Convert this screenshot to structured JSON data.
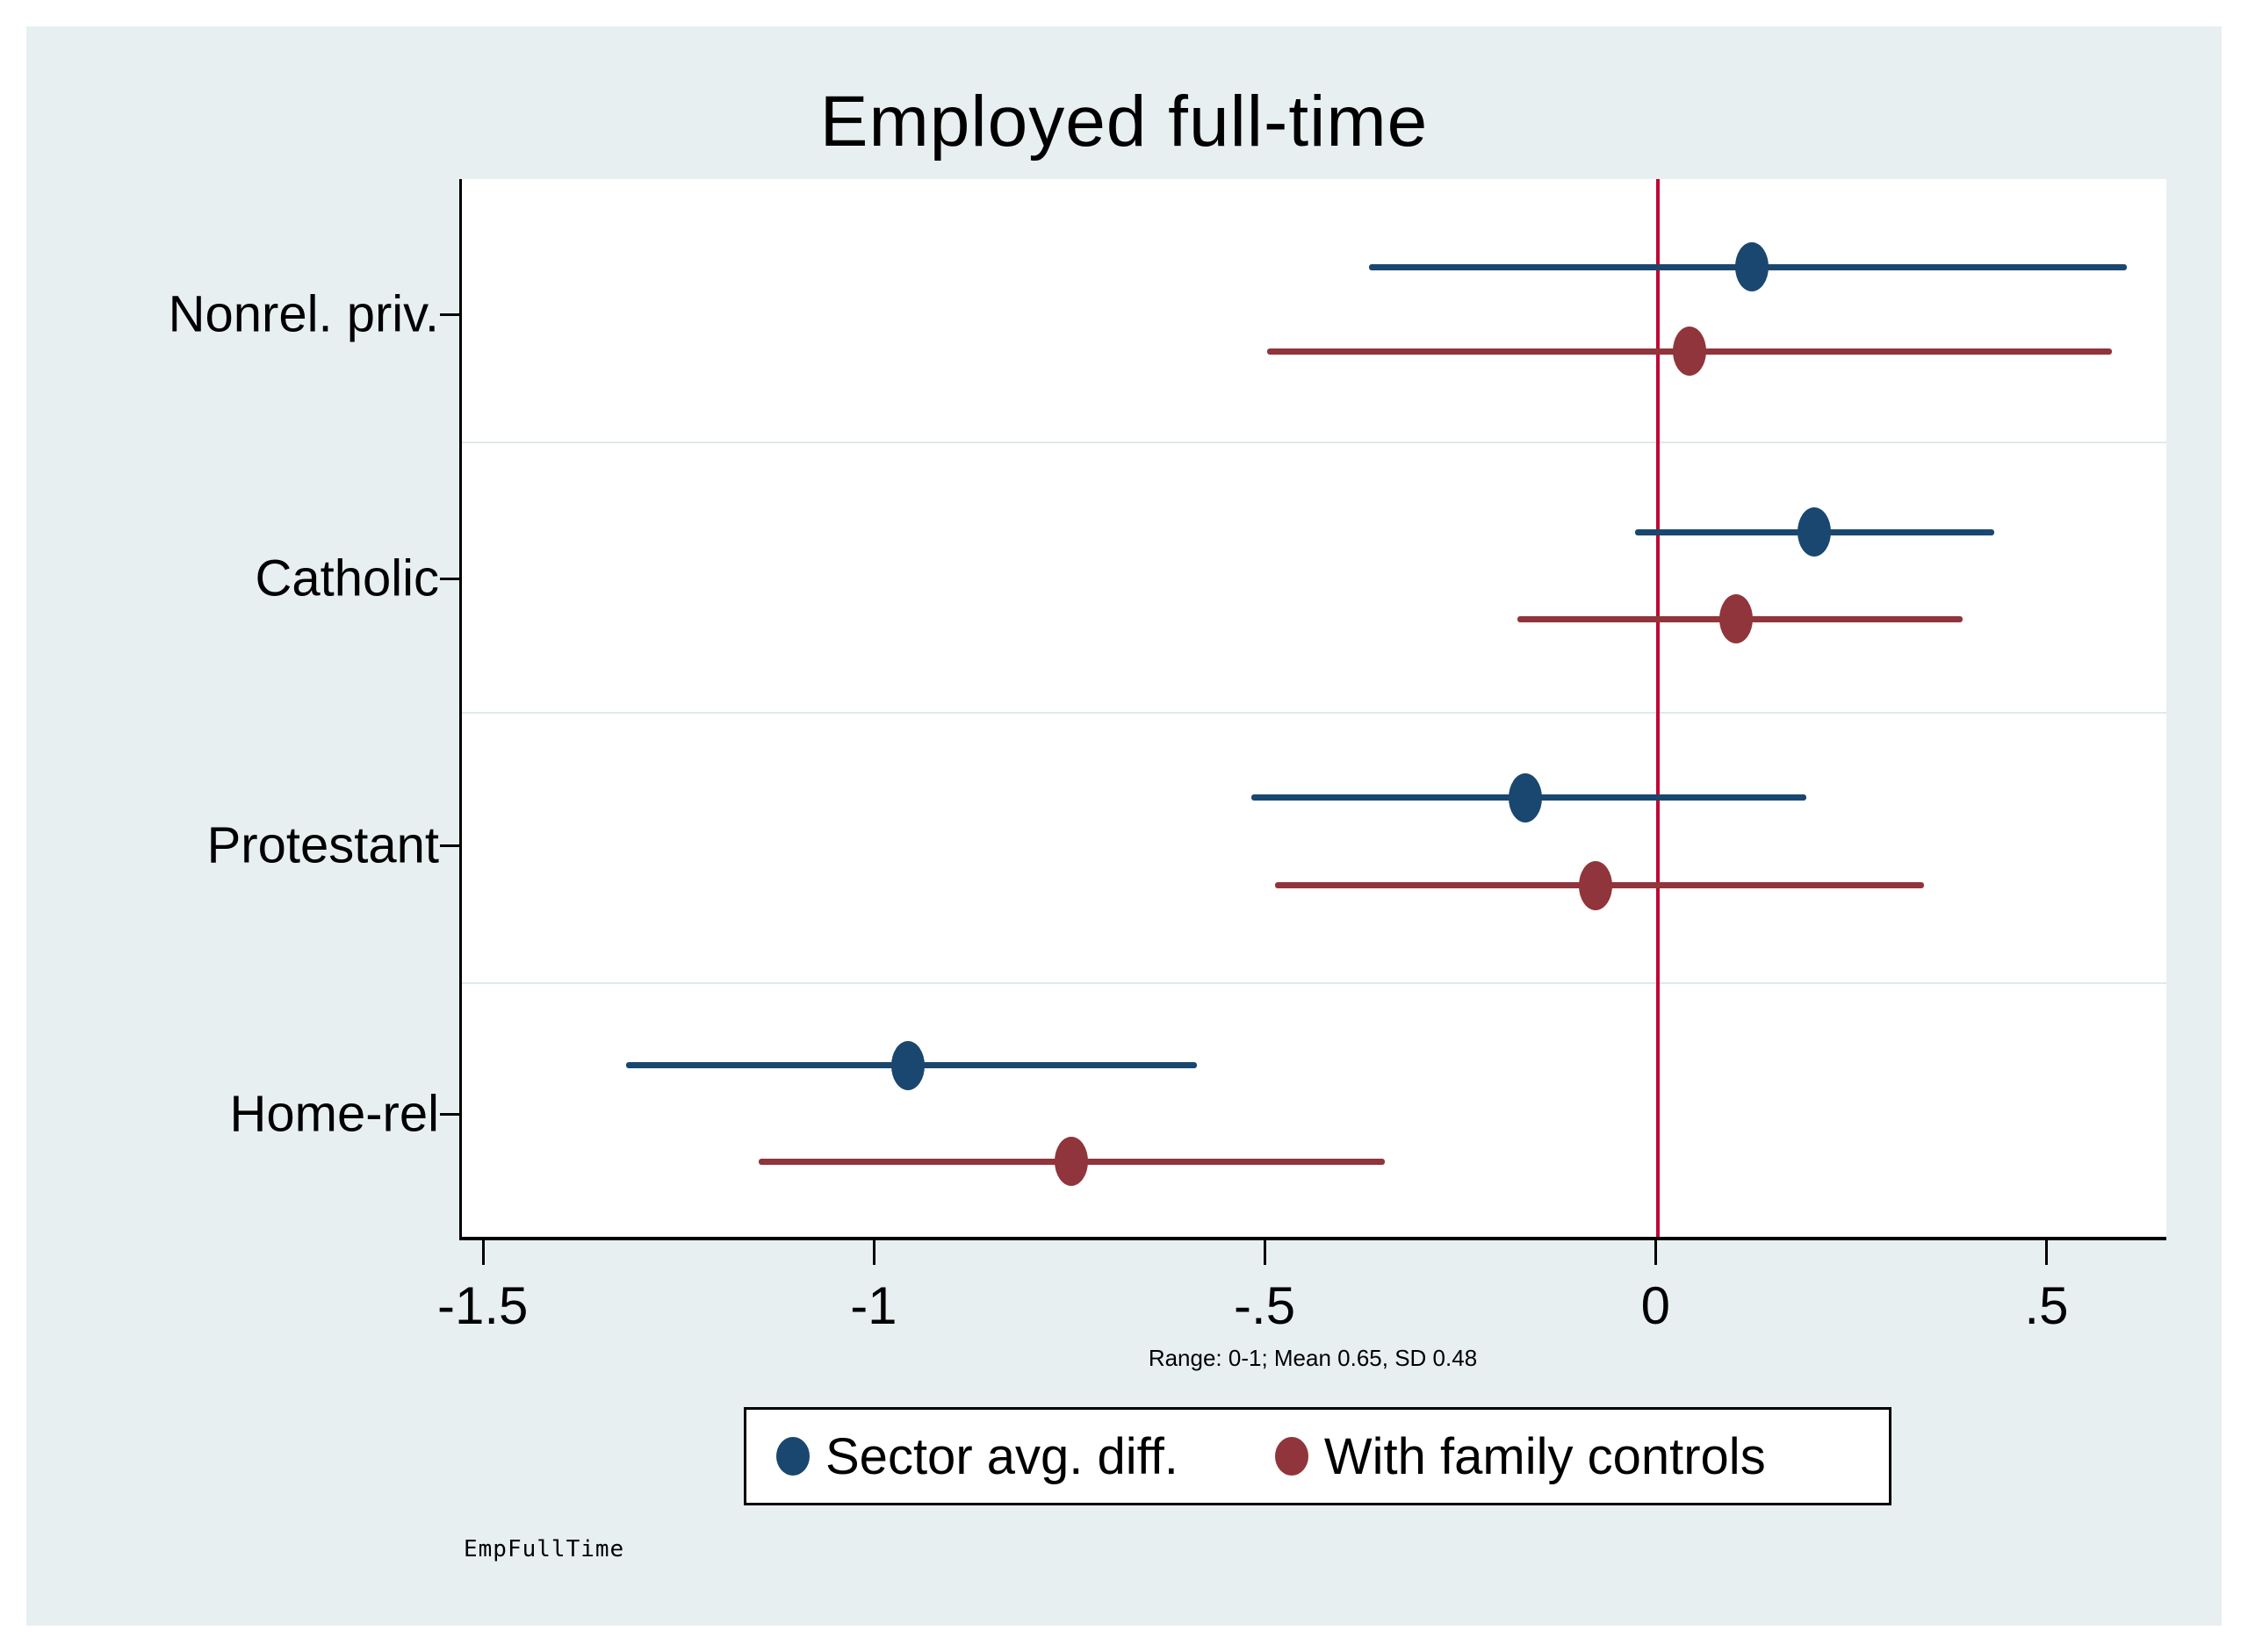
{
  "chart_data": {
    "type": "scatter",
    "subtype": "horizontal-coefficient-plot-with-ci",
    "title": "Employed full-time",
    "categories": [
      "Nonrel. priv.",
      "Catholic",
      "Protestant",
      "Home-rel"
    ],
    "series": [
      {
        "name": "Sector avg. diff.",
        "color": "#1a476f",
        "values": [
          {
            "category": "Nonrel. priv.",
            "estimate": 0.12,
            "ci_low": -0.37,
            "ci_high": 0.6
          },
          {
            "category": "Catholic",
            "estimate": 0.2,
            "ci_low": -0.03,
            "ci_high": 0.43
          },
          {
            "category": "Protestant",
            "estimate": -0.17,
            "ci_low": -0.52,
            "ci_high": 0.19
          },
          {
            "category": "Home-rel",
            "estimate": -0.96,
            "ci_low": -1.32,
            "ci_high": -0.59
          }
        ]
      },
      {
        "name": "With family controls",
        "color": "#90353b",
        "values": [
          {
            "category": "Nonrel. priv.",
            "estimate": 0.04,
            "ci_low": -0.5,
            "ci_high": 0.58
          },
          {
            "category": "Catholic",
            "estimate": 0.1,
            "ci_low": -0.18,
            "ci_high": 0.39
          },
          {
            "category": "Protestant",
            "estimate": -0.08,
            "ci_low": -0.49,
            "ci_high": 0.34
          },
          {
            "category": "Home-rel",
            "estimate": -0.75,
            "ci_low": -1.15,
            "ci_high": -0.35
          }
        ]
      }
    ],
    "x_axis": {
      "range": [
        -1.53,
        0.65
      ],
      "ticks": [
        {
          "value": -1.5,
          "label": "-1.5"
        },
        {
          "value": -1.0,
          "label": "-1"
        },
        {
          "value": -0.5,
          "label": "-.5"
        },
        {
          "value": 0.0,
          "label": "0"
        },
        {
          "value": 0.5,
          "label": ".5"
        }
      ]
    },
    "reference_line": {
      "x": 0,
      "color": "#c10534"
    },
    "grid": "category-band-separators",
    "legend_position": "bottom-center",
    "note": "Range: 0-1; Mean 0.65, SD 0.48",
    "footer": "EmpFullTime",
    "colors": {
      "canvas_background": "#e8eff1",
      "plot_background": "#ffffff",
      "gridline": "#dfe9ec",
      "axis": "#000000"
    }
  }
}
